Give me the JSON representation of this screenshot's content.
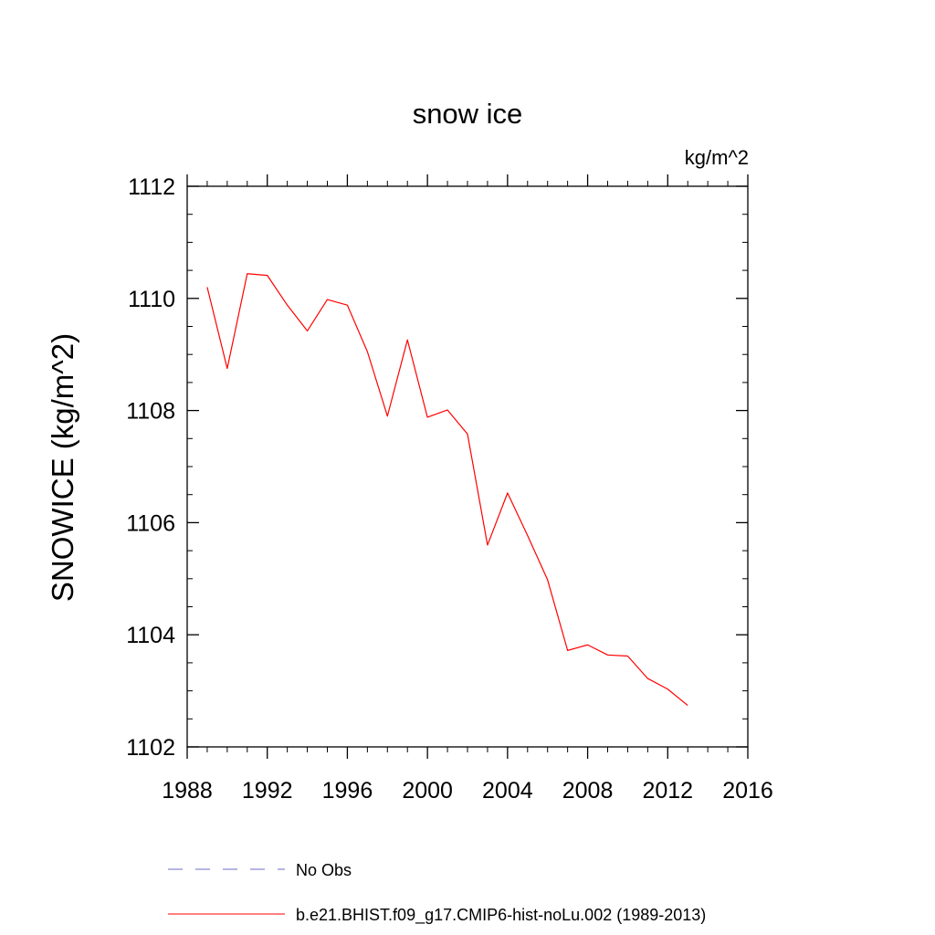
{
  "chart_data": {
    "type": "line",
    "title": "snow ice",
    "units": "kg/m^2",
    "ylabel": "SNOWICE  (kg/m^2)",
    "xlabel": "",
    "xlim": [
      1988,
      2016
    ],
    "ylim": [
      1102,
      1112
    ],
    "xticks": [
      "1988",
      "1992",
      "1996",
      "2000",
      "2004",
      "2008",
      "2012",
      "2016"
    ],
    "yticks": [
      "1102",
      "1104",
      "1106",
      "1108",
      "1110",
      "1112"
    ],
    "grid": false,
    "legend_position": "bottom",
    "series": [
      {
        "name": "b.e21.BHIST.f09_g17.CMIP6-hist-noLu.002 (1989-2013)",
        "color": "#ff0000",
        "style": "solid",
        "x": [
          1989,
          1990,
          1991,
          1992,
          1993,
          1994,
          1995,
          1996,
          1997,
          1998,
          1999,
          2000,
          2001,
          2002,
          2003,
          2004,
          2005,
          2006,
          2007,
          2008,
          2009,
          2010,
          2011,
          2012,
          2013
        ],
        "y": [
          1110.2,
          1108.75,
          1110.44,
          1110.41,
          1109.88,
          1109.42,
          1109.98,
          1109.88,
          1109.05,
          1107.9,
          1109.26,
          1107.88,
          1108.01,
          1107.58,
          1105.6,
          1106.53,
          1105.77,
          1104.98,
          1103.72,
          1103.82,
          1103.64,
          1103.62,
          1103.22,
          1103.03,
          1102.74
        ]
      }
    ],
    "legend": [
      {
        "label": "No Obs",
        "color": "#6a6ac8",
        "style": "dashed"
      },
      {
        "label": "b.e21.BHIST.f09_g17.CMIP6-hist-noLu.002 (1989-2013)",
        "color": "#ff0000",
        "style": "solid"
      }
    ]
  }
}
